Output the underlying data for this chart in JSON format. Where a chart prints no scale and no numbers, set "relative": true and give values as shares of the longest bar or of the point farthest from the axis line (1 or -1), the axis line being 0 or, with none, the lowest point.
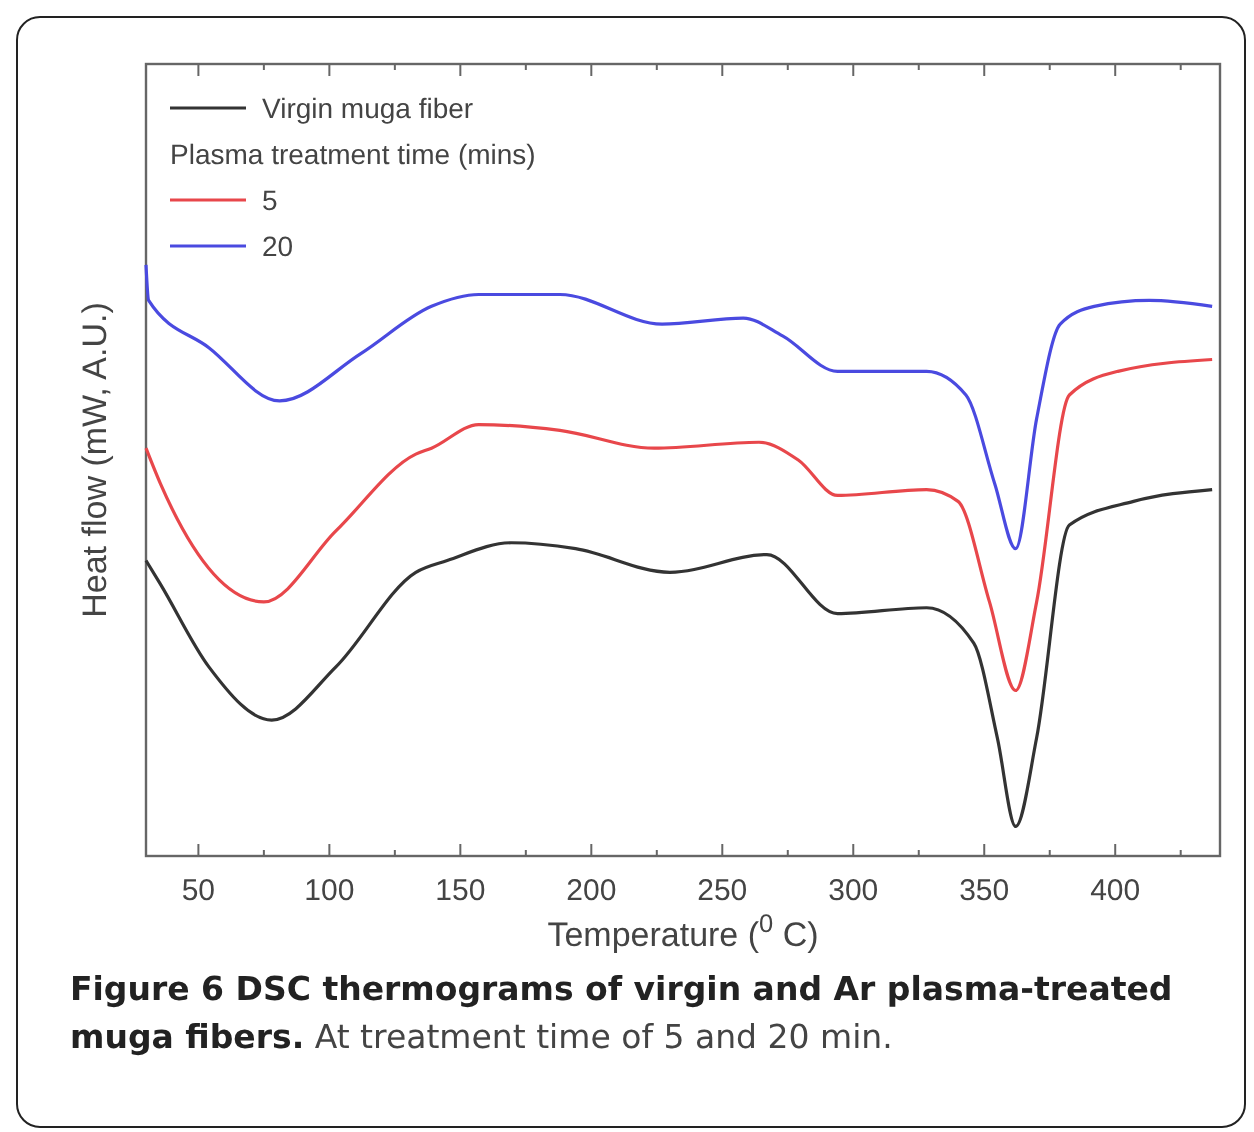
{
  "chart_data": {
    "type": "line",
    "title": "Figure 6 DSC thermograms of virgin and Ar plasma-treated muga fibers.",
    "subtitle": "At treatment time of 5 and 20 min.",
    "xlabel": "Temperature ($^{0}$ C)",
    "ylabel": "Heat flow (mW, A.U.)",
    "legend_title": "Plasma treatment time (mins)",
    "legend": "top left",
    "relative": true,
    "xlim": [
      30,
      440
    ],
    "xticks": [
      50,
      {
        "value": 75,
        "label": null
      },
      100,
      {
        "value": 125,
        "label": null
      },
      150,
      {
        "value": 175,
        "label": null
      },
      200,
      {
        "value": 225,
        "label": null
      },
      250,
      {
        "value": 275,
        "label": null
      },
      300,
      {
        "value": 325,
        "label": null
      },
      350,
      {
        "value": 375,
        "label": null
      },
      400,
      {
        "value": 425,
        "label": null
      }
    ],
    "series": [
      {
        "name": "Virgin muga fiber",
        "color": "#333333",
        "x": [
          30,
          35.5,
          54,
          78,
          102.5,
          133,
          145,
          169.5,
          194,
          230,
          267,
          294,
          328,
          346,
          355,
          362,
          370,
          382.5,
          407,
          437
        ],
        "values": [
          0.5,
          0.46,
          0.32,
          0.23,
          0.32,
          0.48,
          0.5,
          0.53,
          0.52,
          0.48,
          0.51,
          0.41,
          0.42,
          0.36,
          0.2,
          0.05,
          0.2,
          0.56,
          0.6,
          0.62
        ]
      },
      {
        "name": "5",
        "color": "#e8474b",
        "x": [
          30,
          35.5,
          75,
          102.5,
          133,
          139,
          157,
          188,
          224,
          264,
          279,
          294,
          328,
          340,
          352,
          362,
          370,
          382.5,
          401,
          437
        ],
        "values": [
          0.69,
          0.63,
          0.43,
          0.55,
          0.68,
          0.69,
          0.73,
          0.72,
          0.69,
          0.7,
          0.67,
          0.61,
          0.62,
          0.6,
          0.43,
          0.28,
          0.43,
          0.78,
          0.82,
          0.84
        ]
      },
      {
        "name": "20",
        "color": "#4a4ae0",
        "x": [
          30,
          31,
          54,
          81,
          112,
          139,
          157,
          188,
          227,
          258,
          273,
          294,
          328,
          343,
          354,
          362,
          370,
          379,
          392,
          413,
          437
        ],
        "values": [
          1.0,
          0.94,
          0.86,
          0.77,
          0.85,
          0.93,
          0.95,
          0.95,
          0.9,
          0.91,
          0.88,
          0.82,
          0.82,
          0.78,
          0.63,
          0.52,
          0.74,
          0.9,
          0.93,
          0.94,
          0.93
        ]
      }
    ]
  }
}
